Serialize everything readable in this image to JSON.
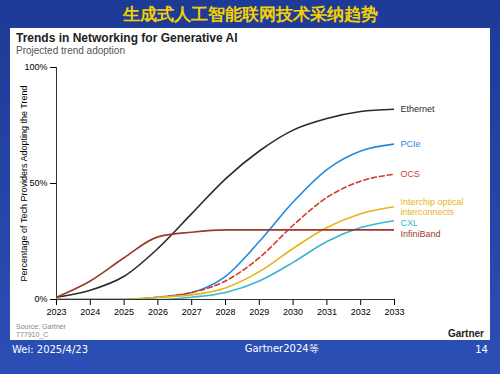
{
  "slide": {
    "title": "生成式人工智能联网技术采纳趋势",
    "source": [
      "Source: Gartner",
      "777910_C"
    ],
    "brand": "Gartner",
    "footer": {
      "left": "Wei: 2025/4/23",
      "center": "Gartner2024等",
      "page": "14"
    }
  },
  "chart_data": {
    "type": "line",
    "title": "Trends in Networking for Generative AI",
    "subtitle": "Projected trend adoption",
    "y_label": "Percentage of Tech Providers Adopting the Trend",
    "x": [
      2023,
      2024,
      2025,
      2026,
      2027,
      2028,
      2029,
      2030,
      2031,
      2032,
      2033
    ],
    "xlim": [
      2023,
      2033
    ],
    "xticks": [
      2023,
      2024,
      2025,
      2026,
      2027,
      2028,
      2029,
      2030,
      2031,
      2032,
      2033
    ],
    "ylim": [
      0,
      100
    ],
    "yticks": [
      {
        "value": 0,
        "label": "0%"
      },
      {
        "value": 50,
        "label": "50%"
      },
      {
        "value": 100,
        "label": "100%"
      }
    ],
    "grid": false,
    "series": [
      {
        "name": "Ethernet",
        "color": "#2b2b2b",
        "line_style": "solid",
        "values": [
          1,
          4,
          10,
          22,
          37,
          52,
          64,
          73,
          78,
          81,
          82
        ]
      },
      {
        "name": "PCIe",
        "color": "#1f8ae0",
        "line_style": "solid",
        "values": [
          0,
          0,
          0,
          1,
          3,
          10,
          25,
          42,
          56,
          64,
          67
        ]
      },
      {
        "name": "OCS",
        "color": "#d03c2c",
        "line_style": "dashed",
        "values": [
          0,
          0,
          0,
          1,
          3,
          8,
          18,
          32,
          44,
          51,
          54
        ]
      },
      {
        "name": "Interchip optical interconnects",
        "color": "#e8b21b",
        "line_style": "solid",
        "values": [
          0,
          0,
          0,
          1,
          2,
          5,
          12,
          22,
          31,
          37,
          40
        ]
      },
      {
        "name": "CXL",
        "color": "#35b8d0",
        "line_style": "solid",
        "values": [
          0,
          0,
          0,
          0,
          1,
          3,
          8,
          16,
          25,
          31,
          34
        ]
      },
      {
        "name": "InfiniBand",
        "color": "#9b3a2a",
        "line_style": "solid",
        "values": [
          1,
          8,
          18,
          27,
          29,
          30,
          30,
          30,
          30,
          30,
          30
        ]
      }
    ]
  }
}
